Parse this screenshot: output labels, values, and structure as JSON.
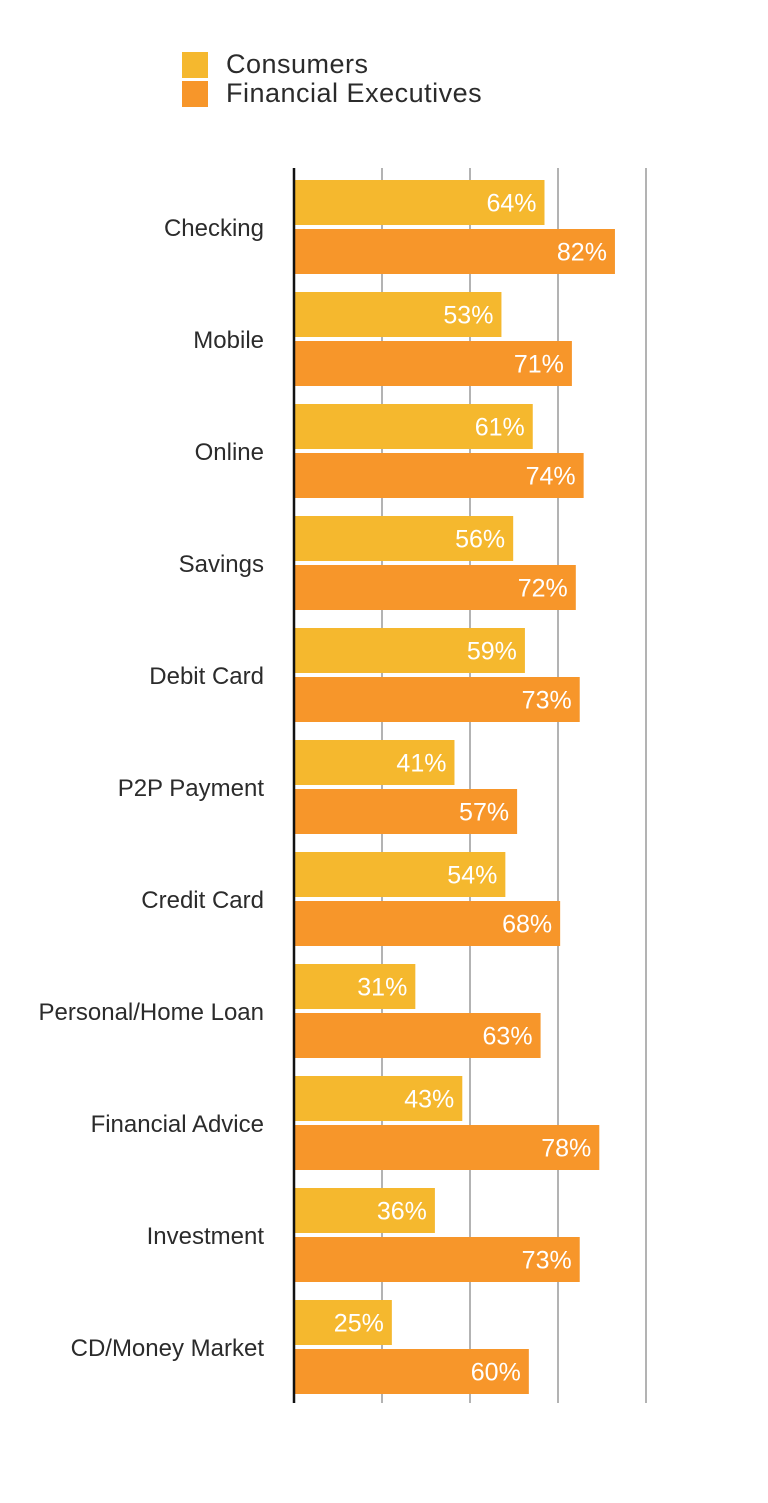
{
  "colors": {
    "consumers": "#F5B82E",
    "financial_executives": "#F7962A",
    "gridline": "#b3b3b3",
    "axis": "#111111",
    "category_label": "#2b2b2b",
    "value_label": "#ffffff"
  },
  "legend": {
    "items": [
      {
        "label": "Consumers",
        "color": "#F5B82E"
      },
      {
        "label": "Financial Executives",
        "color": "#F7962A"
      }
    ]
  },
  "chart_data": {
    "type": "bar",
    "orientation": "horizontal",
    "categories": [
      "Checking",
      "Mobile",
      "Online",
      "Savings",
      "Debit Card",
      "P2P Payment",
      "Credit Card",
      "Personal/Home Loan",
      "Financial Advice",
      "Investment",
      "CD/Money Market"
    ],
    "series": [
      {
        "name": "Consumers",
        "color": "#F5B82E",
        "values": [
          64,
          53,
          61,
          56,
          59,
          41,
          54,
          31,
          43,
          36,
          25
        ],
        "labels": [
          "64%",
          "53%",
          "61%",
          "56%",
          "59%",
          "41%",
          "54%",
          "31%",
          "43%",
          "36%",
          "25%"
        ]
      },
      {
        "name": "Financial Executives",
        "color": "#F7962A",
        "values": [
          82,
          71,
          74,
          72,
          73,
          57,
          68,
          63,
          78,
          73,
          60
        ],
        "labels": [
          "82%",
          "71%",
          "74%",
          "72%",
          "73%",
          "57%",
          "68%",
          "63%",
          "78%",
          "73%",
          "60%"
        ]
      }
    ],
    "xlim": [
      0,
      100
    ],
    "gridlines": [
      25,
      50,
      75,
      100
    ],
    "grid": true,
    "legend_position": "top-left",
    "title": "",
    "xlabel": "",
    "ylabel": ""
  }
}
